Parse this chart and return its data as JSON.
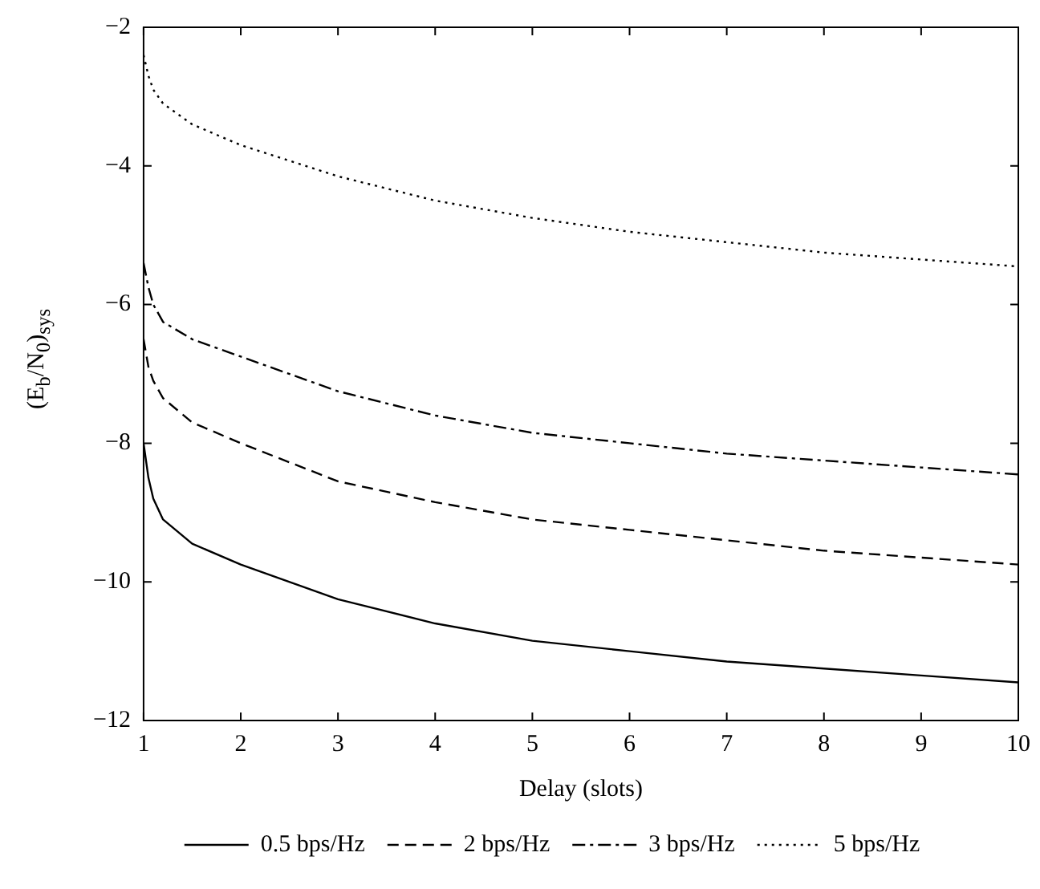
{
  "chart_data": {
    "type": "line",
    "xlabel": "Delay (slots)",
    "ylabel": "(E$_{b}$/N$_{0}$)$_{sys}$",
    "xlim": [
      1,
      10
    ],
    "xticks": [
      1,
      2,
      3,
      4,
      5,
      6,
      7,
      8,
      9,
      10
    ],
    "ylim": [
      -12,
      -2
    ],
    "yticks": [
      -12,
      -10,
      -8,
      -6,
      -4,
      -2
    ],
    "grid": false,
    "legend": "bottom",
    "marker": "none",
    "series": [
      {
        "name": "0.5 bps/Hz",
        "color": "#000000",
        "line_style": "solid",
        "x": [
          1,
          1.05,
          1.1,
          1.2,
          1.5,
          2,
          3,
          4,
          5,
          6,
          7,
          8,
          9,
          10
        ],
        "values": [
          -8.0,
          -8.5,
          -8.8,
          -9.1,
          -9.45,
          -9.75,
          -10.25,
          -10.6,
          -10.85,
          -11.0,
          -11.15,
          -11.25,
          -11.35,
          -11.45
        ]
      },
      {
        "name": "2 bps/Hz",
        "color": "#000000",
        "line_style": "dashed",
        "x": [
          1,
          1.05,
          1.1,
          1.2,
          1.5,
          2,
          3,
          4,
          5,
          6,
          7,
          8,
          9,
          10
        ],
        "values": [
          -6.5,
          -6.9,
          -7.1,
          -7.35,
          -7.7,
          -8.0,
          -8.55,
          -8.85,
          -9.1,
          -9.25,
          -9.4,
          -9.55,
          -9.65,
          -9.75
        ]
      },
      {
        "name": "3 bps/Hz",
        "color": "#000000",
        "line_style": "dashdot",
        "x": [
          1,
          1.05,
          1.1,
          1.2,
          1.5,
          2,
          3,
          4,
          5,
          6,
          7,
          8,
          9,
          10
        ],
        "values": [
          -5.4,
          -5.75,
          -6.0,
          -6.25,
          -6.5,
          -6.75,
          -7.25,
          -7.6,
          -7.85,
          -8.0,
          -8.15,
          -8.25,
          -8.35,
          -8.45
        ]
      },
      {
        "name": "5 bps/Hz",
        "color": "#000000",
        "line_style": "dotted",
        "x": [
          1,
          1.05,
          1.1,
          1.2,
          1.5,
          2,
          3,
          4,
          5,
          6,
          7,
          8,
          9,
          10
        ],
        "values": [
          -2.4,
          -2.7,
          -2.9,
          -3.1,
          -3.4,
          -3.7,
          -4.15,
          -4.5,
          -4.75,
          -4.95,
          -5.1,
          -5.25,
          -5.35,
          -5.45
        ]
      }
    ]
  }
}
